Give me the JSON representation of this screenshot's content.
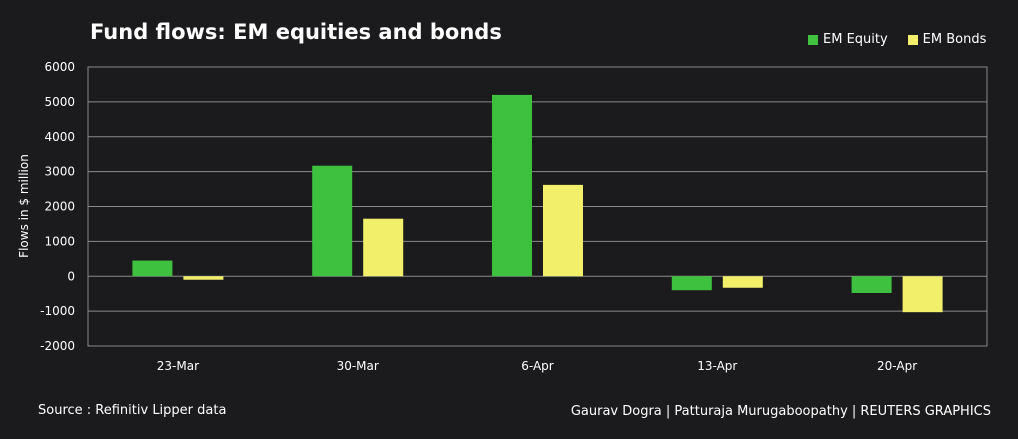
{
  "colors": {
    "background": "#1b1b1d",
    "equity": "#3dc13f",
    "bonds": "#f2f06a",
    "grid": "#8a8a8a"
  },
  "chart_data": {
    "type": "bar",
    "title": "Fund flows: EM equities and bonds",
    "ylabel": "Flows in $ million",
    "xlabel": "",
    "categories": [
      "23-Mar",
      "30-Mar",
      "6-Apr",
      "13-Apr",
      "20-Apr"
    ],
    "series": [
      {
        "name": "EM Equity",
        "values": [
          450,
          3170,
          5200,
          -400,
          -480
        ]
      },
      {
        "name": "EM Bonds",
        "values": [
          -100,
          1650,
          2620,
          -330,
          -1030
        ]
      }
    ],
    "ylim": [
      -2000,
      6000
    ],
    "yticks": [
      6000,
      5000,
      4000,
      3000,
      2000,
      1000,
      0,
      -1000,
      -2000
    ],
    "grid": true,
    "legend_position": "top-right"
  },
  "footer": {
    "source": "Source : Refinitiv Lipper data",
    "credit": "Gaurav Dogra | Patturaja Murugaboopathy | REUTERS GRAPHICS"
  }
}
